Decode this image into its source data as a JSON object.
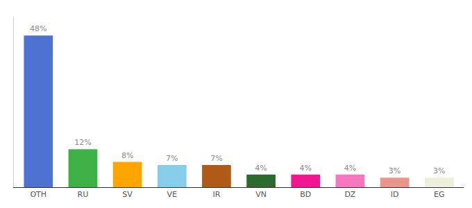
{
  "chart_data": {
    "type": "bar",
    "categories": [
      "OTH",
      "RU",
      "SV",
      "VE",
      "IR",
      "VN",
      "BD",
      "DZ",
      "ID",
      "EG"
    ],
    "values": [
      48,
      12,
      8,
      7,
      7,
      4,
      4,
      4,
      3,
      3
    ],
    "value_labels": [
      "48%",
      "12%",
      "8%",
      "7%",
      "7%",
      "4%",
      "4%",
      "4%",
      "3%",
      "3%"
    ],
    "colors": [
      "#4d72d1",
      "#3db046",
      "#ffa500",
      "#87ceeb",
      "#b05a1a",
      "#2d6a2d",
      "#f01890",
      "#f878c0",
      "#e8978a",
      "#eeeedd"
    ],
    "ylim": [
      0,
      54
    ],
    "data_labels": true,
    "tick_labels": "x",
    "grid": false
  }
}
